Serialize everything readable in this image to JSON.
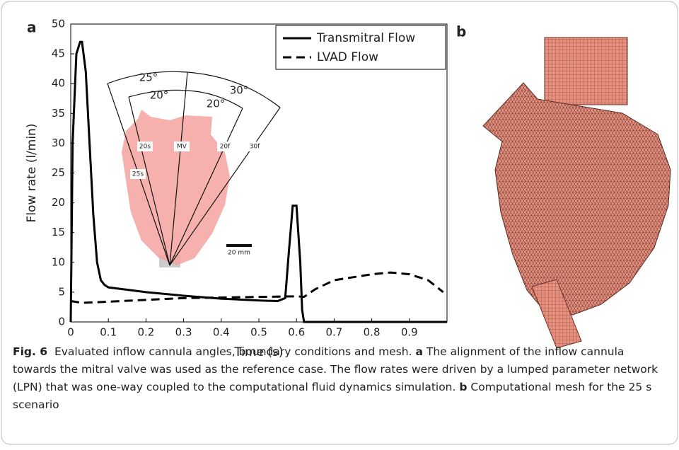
{
  "panels": {
    "a": "a",
    "b": "b"
  },
  "chart_data": {
    "type": "line",
    "x_label": "Time (s)",
    "y_label": "Flow rate (l/min)",
    "xlim": [
      0,
      1
    ],
    "ylim": [
      0,
      50
    ],
    "xticks": [
      0,
      0.1,
      0.2,
      0.3,
      0.4,
      0.5,
      0.6,
      0.7,
      0.8,
      0.9
    ],
    "yticks": [
      0,
      5,
      10,
      15,
      20,
      25,
      30,
      35,
      40,
      45,
      50
    ],
    "legend": "upper right",
    "series": [
      {
        "name": "Transmitral Flow",
        "color": "#000000",
        "dash": false,
        "x": [
          0,
          0.005,
          0.015,
          0.025,
          0.03,
          0.04,
          0.05,
          0.06,
          0.07,
          0.08,
          0.09,
          0.1,
          0.2,
          0.3,
          0.4,
          0.5,
          0.55,
          0.57,
          0.58,
          0.59,
          0.6,
          0.61,
          0.615,
          0.62,
          1.0
        ],
        "values": [
          0,
          30,
          45,
          47,
          47,
          42,
          30,
          18,
          10,
          7,
          6.2,
          5.8,
          5.0,
          4.4,
          3.9,
          3.6,
          3.5,
          4,
          12,
          19.5,
          19.5,
          10,
          2,
          0,
          0
        ]
      },
      {
        "name": "LVAD Flow",
        "color": "#000000",
        "dash": true,
        "x": [
          0,
          0.03,
          0.1,
          0.2,
          0.3,
          0.4,
          0.5,
          0.6,
          0.62,
          0.65,
          0.7,
          0.8,
          0.85,
          0.9,
          0.95,
          0.98,
          0.99
        ],
        "values": [
          3.5,
          3.2,
          3.4,
          3.7,
          4,
          4.1,
          4.2,
          4.3,
          4.2,
          5.5,
          7,
          8,
          8.3,
          8,
          7,
          5.5,
          5
        ]
      }
    ]
  },
  "inset": {
    "angles": [
      "25°",
      "20°",
      "20°",
      "30°"
    ],
    "line_labels": [
      "20s",
      "25s",
      "MV",
      "20f",
      "30f"
    ],
    "scale_bar": "20 mm"
  },
  "caption": {
    "label": "Fig. 6",
    "text": "Evaluated inflow cannula angles, boundary conditions and mesh.",
    "a": "a",
    "text_a": "The alignment of the inflow cannula towards the mitral valve was used as the reference case. The flow rates were driven by a lumped parameter network (LPN) that was one-way coupled to the computational fluid dynamics simulation.",
    "b": "b",
    "text_b": "Computational mesh for the 25 s scenario"
  }
}
